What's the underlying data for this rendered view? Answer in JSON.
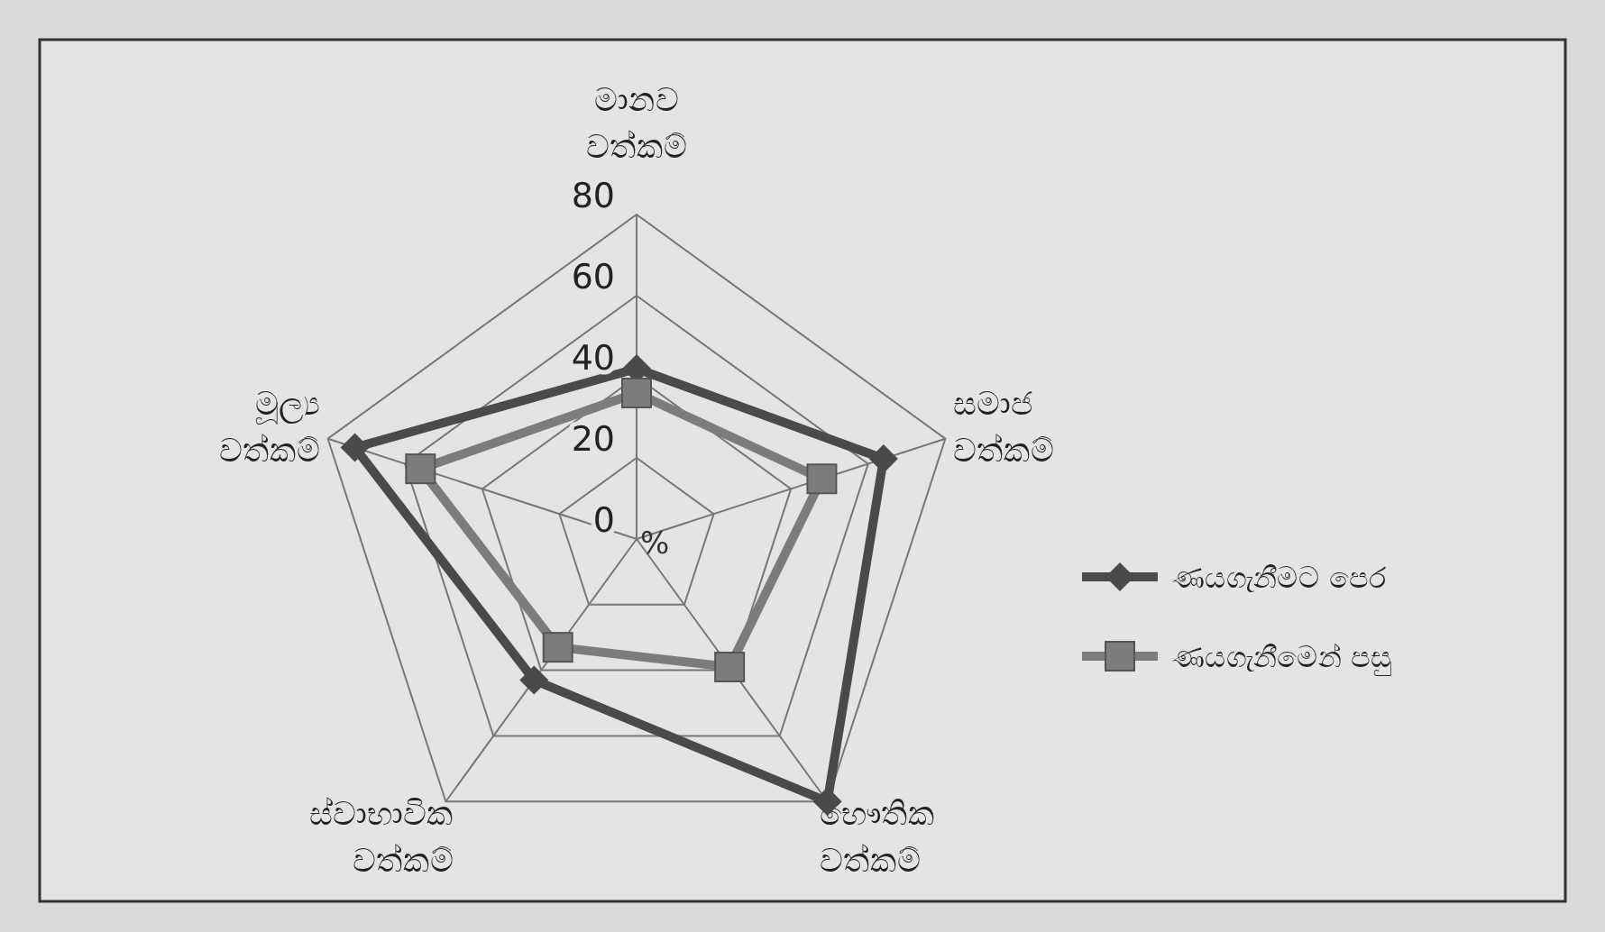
{
  "chart_data": {
    "type": "radar",
    "ylabel": "%",
    "categories": [
      "මානව වත්කම්",
      "සමාජ වත්කම්",
      "භෞතික වත්කම්",
      "ස්වාභාවික වත්කම්",
      "මූල්‍ය වත්කම්"
    ],
    "ylim": [
      0,
      80
    ],
    "yticks": [
      0,
      20,
      40,
      60,
      80
    ],
    "grid": true,
    "legend": "right",
    "series": [
      {
        "name": "ණයගැනීමට පෙර",
        "color": "#4a4a4a",
        "marker": "diamond",
        "values": [
          42,
          64,
          80,
          43,
          73
        ]
      },
      {
        "name": "ණයගැනීමෙන් පසු",
        "color": "#7c7c7c",
        "marker": "square",
        "values": [
          36,
          48,
          39,
          33,
          56
        ]
      }
    ]
  }
}
